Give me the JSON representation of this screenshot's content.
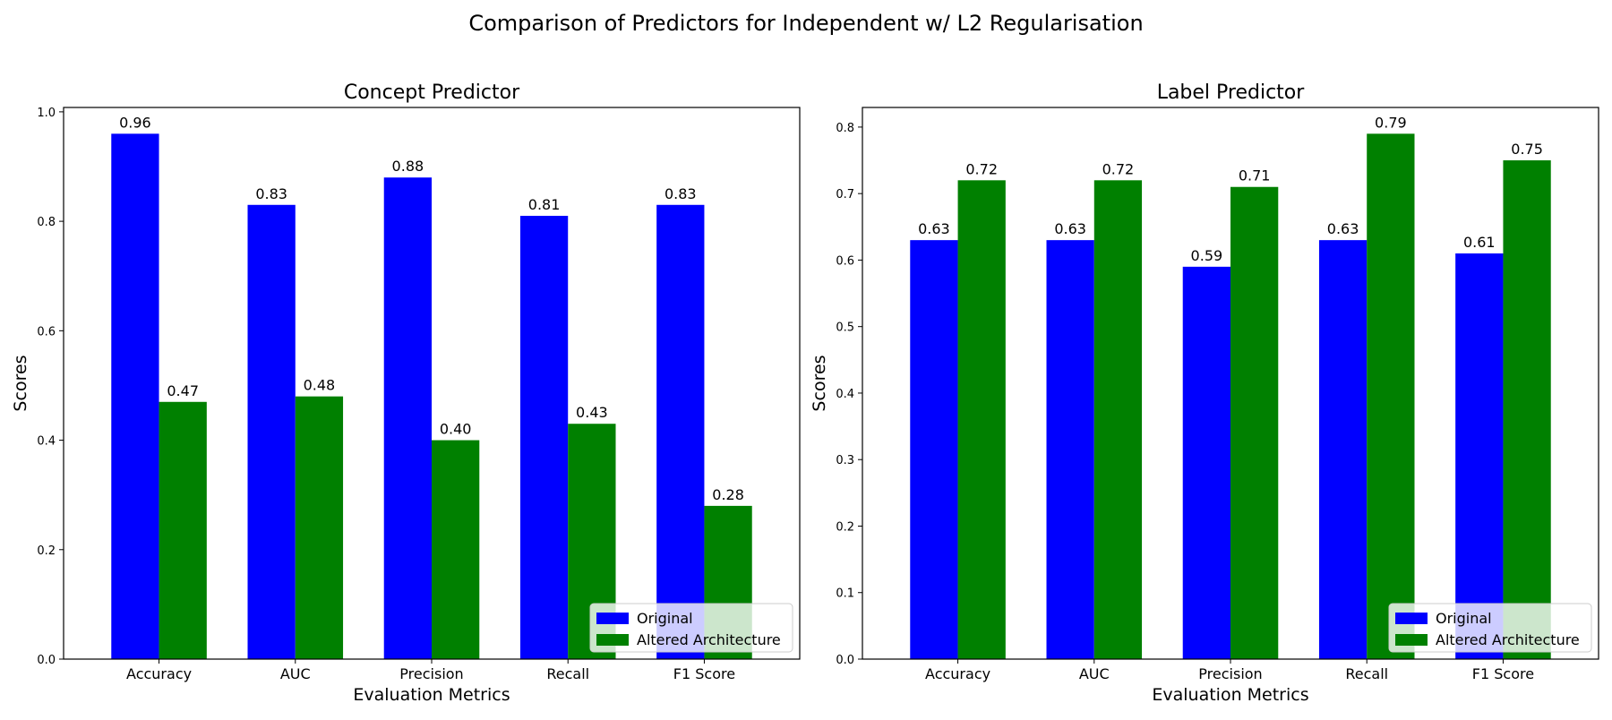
{
  "figure": {
    "suptitle": "Comparison of Predictors for Independent w/ L2 Regularisation"
  },
  "colors": {
    "original": "#0000ff",
    "altered": "#008000",
    "axis": "#000000",
    "background": "#ffffff"
  },
  "chart_data": [
    {
      "type": "bar",
      "title": "Concept Predictor",
      "xlabel": "Evaluation Metrics",
      "ylabel": "Scores",
      "categories": [
        "Accuracy",
        "AUC",
        "Precision",
        "Recall",
        "F1 Score"
      ],
      "series": [
        {
          "name": "Original",
          "values": [
            0.96,
            0.83,
            0.88,
            0.81,
            0.83
          ]
        },
        {
          "name": "Altered Architecture",
          "values": [
            0.47,
            0.48,
            0.4,
            0.43,
            0.28
          ]
        }
      ],
      "value_labels": [
        [
          "0.96",
          "0.83",
          "0.88",
          "0.81",
          "0.83"
        ],
        [
          "0.47",
          "0.48",
          "0.40",
          "0.43",
          "0.28"
        ]
      ],
      "ylim": [
        0,
        1.008
      ],
      "yticks": [
        0.0,
        0.2,
        0.4,
        0.6,
        0.8,
        1.0
      ],
      "ytick_labels": [
        "0.0",
        "0.2",
        "0.4",
        "0.6",
        "0.8",
        "1.0"
      ],
      "legend_position": "lower-right",
      "grid": false
    },
    {
      "type": "bar",
      "title": "Label Predictor",
      "xlabel": "Evaluation Metrics",
      "ylabel": "Scores",
      "categories": [
        "Accuracy",
        "AUC",
        "Precision",
        "Recall",
        "F1 Score"
      ],
      "series": [
        {
          "name": "Original",
          "values": [
            0.63,
            0.63,
            0.59,
            0.63,
            0.61
          ]
        },
        {
          "name": "Altered Architecture",
          "values": [
            0.72,
            0.72,
            0.71,
            0.79,
            0.75
          ]
        }
      ],
      "value_labels": [
        [
          "0.63",
          "0.63",
          "0.59",
          "0.63",
          "0.61"
        ],
        [
          "0.72",
          "0.72",
          "0.71",
          "0.79",
          "0.75"
        ]
      ],
      "ylim": [
        0,
        0.8295
      ],
      "yticks": [
        0.0,
        0.1,
        0.2,
        0.3,
        0.4,
        0.5,
        0.6,
        0.7,
        0.8
      ],
      "ytick_labels": [
        "0.0",
        "0.1",
        "0.2",
        "0.3",
        "0.4",
        "0.5",
        "0.6",
        "0.7",
        "0.8"
      ],
      "legend_position": "lower-right",
      "grid": false
    }
  ]
}
